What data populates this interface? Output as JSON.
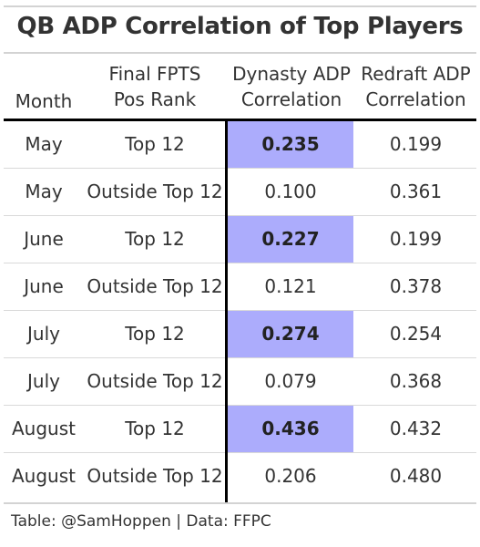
{
  "chart_data": {
    "type": "table",
    "title": "QB ADP Correlation of Top Players",
    "columns": [
      "Month",
      "Final FPTS Pos Rank",
      "Dynasty ADP Correlation",
      "Redraft ADP Correlation"
    ],
    "header_lines": {
      "month": [
        "Month"
      ],
      "fpts": [
        "Final FPTS",
        "Pos Rank"
      ],
      "dynasty": [
        "Dynasty ADP",
        "Correlation"
      ],
      "redraft": [
        "Redraft ADP",
        "Correlation"
      ]
    },
    "rows": [
      {
        "month": "May",
        "rank": "Top 12",
        "dynasty": "0.235",
        "redraft": "0.199",
        "highlight": true
      },
      {
        "month": "May",
        "rank": "Outside Top 12",
        "dynasty": "0.100",
        "redraft": "0.361",
        "highlight": false
      },
      {
        "month": "June",
        "rank": "Top 12",
        "dynasty": "0.227",
        "redraft": "0.199",
        "highlight": true
      },
      {
        "month": "June",
        "rank": "Outside Top 12",
        "dynasty": "0.121",
        "redraft": "0.378",
        "highlight": false
      },
      {
        "month": "July",
        "rank": "Top 12",
        "dynasty": "0.274",
        "redraft": "0.254",
        "highlight": true
      },
      {
        "month": "July",
        "rank": "Outside Top 12",
        "dynasty": "0.079",
        "redraft": "0.368",
        "highlight": false
      },
      {
        "month": "August",
        "rank": "Top 12",
        "dynasty": "0.436",
        "redraft": "0.432",
        "highlight": true
      },
      {
        "month": "August",
        "rank": "Outside Top 12",
        "dynasty": "0.206",
        "redraft": "0.480",
        "highlight": false
      }
    ],
    "highlight_color": "#acacfc",
    "source": "Table: @SamHoppen | Data: FFPC"
  }
}
